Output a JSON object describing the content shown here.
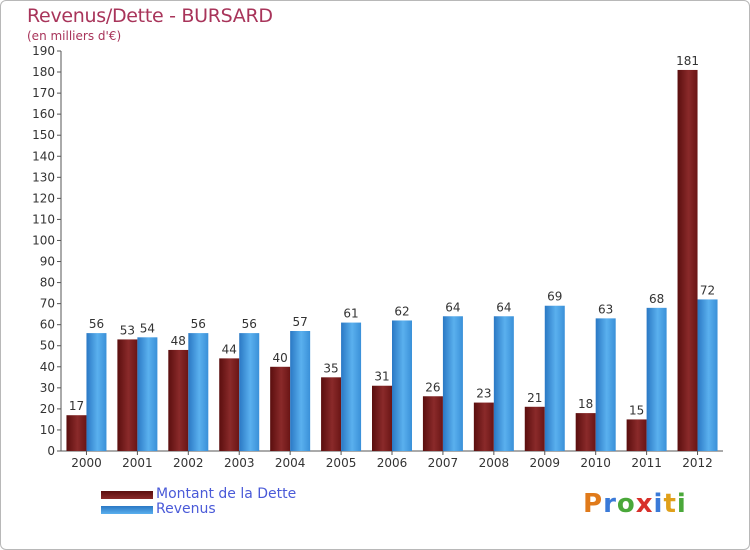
{
  "title": "Revenus/Dette - BURSARD",
  "subtitle": "(en milliers d'€)",
  "colors": {
    "dette": "#7a1a1a",
    "revenus": "#3a8fd8",
    "title": "#a8345a"
  },
  "chart_data": {
    "type": "bar",
    "categories": [
      "2000",
      "2001",
      "2002",
      "2003",
      "2004",
      "2005",
      "2006",
      "2007",
      "2008",
      "2009",
      "2010",
      "2011",
      "2012"
    ],
    "series": [
      {
        "name": "Montant de la Dette",
        "values": [
          17,
          53,
          48,
          44,
          40,
          35,
          31,
          26,
          23,
          21,
          18,
          15,
          181
        ]
      },
      {
        "name": "Revenus",
        "values": [
          56,
          54,
          56,
          56,
          57,
          61,
          62,
          64,
          64,
          69,
          63,
          68,
          72
        ]
      }
    ],
    "y_ticks": [
      0,
      10,
      20,
      30,
      40,
      50,
      60,
      70,
      80,
      90,
      100,
      110,
      120,
      130,
      140,
      150,
      160,
      170,
      180,
      190
    ],
    "ylim": [
      0,
      190
    ],
    "grid": false,
    "legend_position": "bottom-left"
  },
  "legend": [
    {
      "label": "Montant de la Dette"
    },
    {
      "label": "Revenus"
    }
  ],
  "logo": {
    "letters": [
      "P",
      "r",
      "o",
      "x",
      "i",
      "t",
      "i"
    ]
  }
}
